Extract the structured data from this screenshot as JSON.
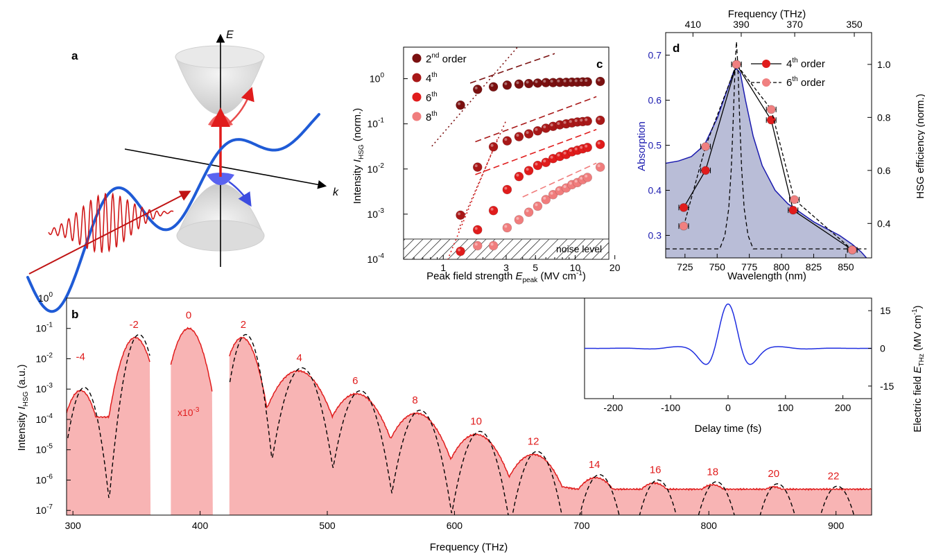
{
  "figure": {
    "panel_letters": {
      "a": "a",
      "b": "b",
      "c": "c",
      "d": "d"
    },
    "axis_labels_a": {
      "energy": "E",
      "momentum": "k"
    }
  },
  "chart_data": [
    {
      "panel": "c",
      "type": "scatter",
      "xscale": "log",
      "yscale": "log",
      "xlim": [
        0.5,
        18
      ],
      "ylim": [
        0.0001,
        5
      ],
      "xticks": [
        1,
        3,
        5,
        10,
        20
      ],
      "yticks": [
        0.0001,
        0.001,
        0.01,
        0.1,
        1
      ],
      "xlabel": "Peak field strength E_peak (MV cm⁻¹)",
      "ylabel": "Intensity I_HSG (norm.)",
      "noise_label": "noise level",
      "noise_level": 0.00028,
      "series": [
        {
          "name": "2nd order",
          "color": "#7a1010",
          "x": [
            1.35,
            1.82,
            2.4,
            3.05,
            3.75,
            4.45,
            5.2,
            6.0,
            6.8,
            7.65,
            8.55,
            9.45,
            10.4,
            11.4,
            12.4,
            15.5
          ],
          "y": [
            0.26,
            0.58,
            0.66,
            0.72,
            0.76,
            0.78,
            0.8,
            0.82,
            0.82,
            0.83,
            0.83,
            0.84,
            0.84,
            0.85,
            0.85,
            0.87
          ],
          "fit_dotted": {
            "x": [
              0.82,
              7.0
            ],
            "y": [
              0.032,
              45
            ]
          },
          "fit_dashed": {
            "x": [
              1.6,
              7.0
            ],
            "y": [
              0.8,
              3.6
            ]
          }
        },
        {
          "name": "4th",
          "color": "#a81818",
          "x": [
            1.35,
            1.82,
            2.4,
            3.05,
            3.75,
            4.45,
            5.2,
            6.0,
            6.8,
            7.65,
            8.55,
            9.45,
            10.4,
            11.4,
            12.4,
            15.5
          ],
          "y": [
            0.00095,
            0.011,
            0.031,
            0.042,
            0.052,
            0.06,
            0.07,
            0.08,
            0.088,
            0.095,
            0.1,
            0.105,
            0.11,
            0.112,
            0.115,
            0.12
          ],
          "fit_dotted": {
            "x": [
              1.3,
              3.0
            ],
            "y": [
              0.00045,
              0.12
            ]
          },
          "fit_dashed": {
            "x": [
              1.75,
              14.5
            ],
            "y": [
              0.04,
              0.4
            ]
          }
        },
        {
          "name": "6th",
          "color": "#e01c1c",
          "x": [
            1.35,
            1.82,
            2.4,
            3.05,
            3.75,
            4.45,
            5.2,
            6.0,
            6.8,
            7.65,
            8.55,
            9.45,
            10.4,
            11.4,
            12.4,
            15.5
          ],
          "y": [
            0.00015,
            0.00045,
            0.0012,
            0.0035,
            0.0068,
            0.0092,
            0.012,
            0.014,
            0.017,
            0.019,
            0.021,
            0.024,
            0.026,
            0.028,
            0.03,
            0.035
          ],
          "fit_dotted": {
            "x": [
              1.05,
              2.6
            ],
            "y": [
              8e-05,
              0.05
            ]
          },
          "fit_dashed": {
            "x": [
              1.75,
              14.5
            ],
            "y": [
              0.0075,
              0.075
            ]
          }
        },
        {
          "name": "8th",
          "color": "#f07d7d",
          "x": [
            1.82,
            2.4,
            3.05,
            3.75,
            4.45,
            5.2,
            6.0,
            6.8,
            7.65,
            8.55,
            9.45,
            10.4,
            11.4,
            12.4,
            15.5
          ],
          "y": [
            0.0002,
            0.0002,
            0.0005,
            0.00075,
            0.0011,
            0.0015,
            0.0021,
            0.0027,
            0.0033,
            0.0038,
            0.0045,
            0.005,
            0.0058,
            0.0065,
            0.011
          ],
          "fit_dashed": {
            "x": [
              4.0,
              14.5
            ],
            "y": [
              0.0024,
              0.0135
            ]
          }
        }
      ]
    },
    {
      "panel": "d",
      "type": "line",
      "xlim": [
        710,
        870
      ],
      "xticks": [
        725,
        750,
        775,
        800,
        825,
        850
      ],
      "xlabel": "Wavelength (nm)",
      "ylabel_left": "Absorption",
      "ylim_left": [
        0.25,
        0.75
      ],
      "yticks_left": [
        0.3,
        0.4,
        0.5,
        0.6,
        0.7
      ],
      "ylabel_right": "HSG efficiency (norm.)",
      "ylim_right": [
        0.27,
        1.12
      ],
      "yticks_right": [
        0.4,
        0.6,
        0.8,
        1.0
      ],
      "top_axis_label": "Frequency (THz)",
      "top_ticks": [
        410,
        390,
        370,
        350
      ],
      "absorption": {
        "color": "#1b1baf",
        "fill": "#b9bdd7",
        "x": [
          710,
          720,
          730,
          740,
          750,
          755,
          760,
          763,
          765,
          768,
          772,
          778,
          785,
          795,
          805,
          815,
          825,
          835,
          845,
          855,
          862,
          866
        ],
        "y": [
          0.46,
          0.465,
          0.475,
          0.5,
          0.56,
          0.6,
          0.64,
          0.665,
          0.67,
          0.66,
          0.6,
          0.52,
          0.455,
          0.4,
          0.37,
          0.35,
          0.33,
          0.315,
          0.3,
          0.28,
          0.263,
          0.25
        ]
      },
      "laser_spectrum_x": [
        710,
        752,
        756,
        759,
        761,
        762.5,
        764,
        765,
        766,
        767.5,
        769,
        771,
        774,
        778,
        866
      ],
      "laser_spectrum_y": [
        0.27,
        0.27,
        0.3,
        0.36,
        0.45,
        0.56,
        0.68,
        0.73,
        0.68,
        0.56,
        0.45,
        0.36,
        0.3,
        0.27,
        0.27
      ],
      "series": [
        {
          "name": "4th order",
          "style": "solid",
          "color": "#e01c1c",
          "x": [
            724,
            741,
            765,
            792,
            809,
            855
          ],
          "y": [
            0.46,
            0.6,
            1.0,
            0.79,
            0.45,
            0.3
          ]
        },
        {
          "name": "6th order",
          "style": "dashed",
          "color": "#f08080",
          "x": [
            724,
            741,
            765,
            792,
            810,
            855
          ],
          "y": [
            0.39,
            0.69,
            1.0,
            0.83,
            0.49,
            0.3
          ]
        }
      ]
    },
    {
      "panel": "b",
      "type": "area",
      "yscale": "log",
      "xlim": [
        295,
        928
      ],
      "ylim": [
        7e-08,
        1
      ],
      "xticks": [
        300,
        400,
        500,
        600,
        700,
        800,
        900
      ],
      "xlabel": "Frequency (THz)",
      "ylabel": "Intensity I_HSG (a.u.)",
      "fill_color": "#f8b4b4",
      "line_color": "#e01c1c",
      "scale_note": "x10⁻³",
      "order_labels": [
        "-4",
        "-2",
        "0",
        "2",
        "4",
        "6",
        "8",
        "10",
        "12",
        "14",
        "16",
        "18",
        "20",
        "22"
      ],
      "order_label_x": [
        306,
        348,
        391,
        434,
        478,
        522,
        569,
        617,
        662,
        710,
        758,
        803,
        851,
        898
      ],
      "peaks": [
        {
          "x": 306,
          "y": 0.0009
        },
        {
          "x": 349,
          "y": 0.05
        },
        {
          "x": 391,
          "y": 0.1
        },
        {
          "x": 433,
          "y": 0.05
        },
        {
          "x": 477,
          "y": 0.004
        },
        {
          "x": 523,
          "y": 0.0007
        },
        {
          "x": 570,
          "y": 0.00016
        },
        {
          "x": 617,
          "y": 3.2e-05
        },
        {
          "x": 662,
          "y": 7e-06
        },
        {
          "x": 711,
          "y": 1.2e-06
        },
        {
          "x": 757,
          "y": 8e-07
        },
        {
          "x": 803,
          "y": 7e-07
        },
        {
          "x": 851,
          "y": 6e-07
        },
        {
          "x": 898,
          "y": 5e-07
        }
      ],
      "gaps": [
        [
          361,
          377
        ],
        [
          410,
          423
        ]
      ]
    },
    {
      "panel": "b-inset",
      "type": "line",
      "xlim": [
        -250,
        250
      ],
      "ylim": [
        -20,
        20
      ],
      "xticks": [
        -200,
        -100,
        0,
        100,
        200
      ],
      "yticks": [
        15,
        0,
        -15
      ],
      "xlabel": "Delay time (fs)",
      "ylabel": "Electric field E_THz (MV cm⁻¹)",
      "line_color": "#1f2ee0",
      "waveform": {
        "amplitude": 16.5,
        "period_fs": 47,
        "width_fs": 40,
        "tail_width_fs": 110,
        "tail_amplitude": 0.07
      }
    }
  ]
}
